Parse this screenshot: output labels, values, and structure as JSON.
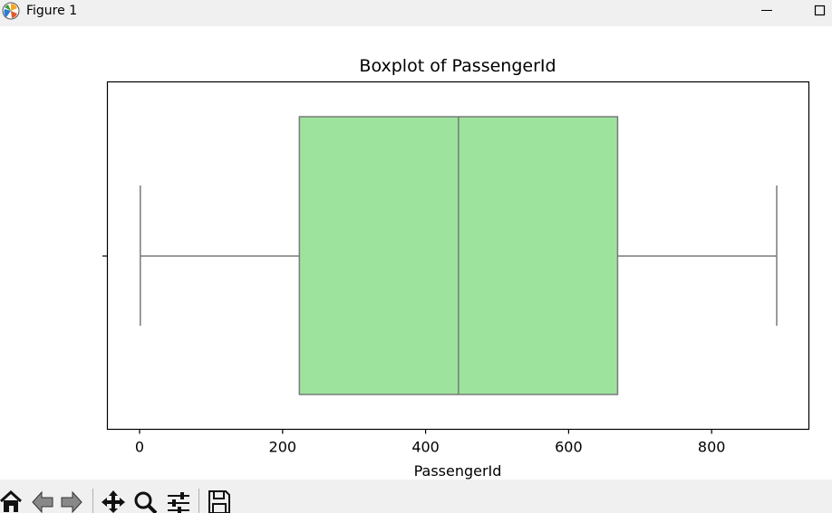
{
  "window": {
    "title": "Figure 1",
    "minimize_icon": "minimize-icon",
    "maximize_icon": "maximize-icon"
  },
  "toolbar": {
    "buttons": [
      "home-icon",
      "back-arrow-icon",
      "forward-arrow-icon",
      "pan-icon",
      "zoom-icon",
      "configure-subplots-icon",
      "save-icon"
    ]
  },
  "colors": {
    "box_fill": "#9de39d",
    "box_edge": "#7a7a7a",
    "axes_edge": "#000000",
    "toolbar_bg": "#f0f0f0"
  },
  "chart_data": {
    "type": "box",
    "title": "Boxplot of PassengerId",
    "xlabel": "PassengerId",
    "ylabel": "",
    "orientation": "horizontal",
    "xlim": [
      -45,
      936
    ],
    "xticks": [
      0,
      200,
      400,
      600,
      800
    ],
    "xtick_labels": [
      "0",
      "200",
      "400",
      "600",
      "800"
    ],
    "box": {
      "whisker_low": 1,
      "q1": 223.5,
      "median": 446,
      "q3": 668.5,
      "whisker_high": 891
    },
    "grid": false,
    "legend": "none"
  }
}
